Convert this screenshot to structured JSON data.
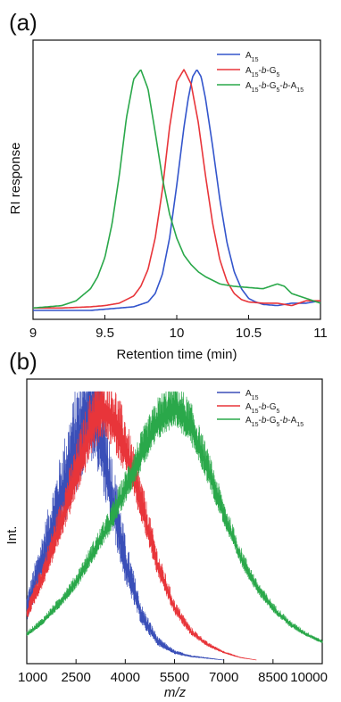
{
  "chart_data": [
    {
      "panel": "(a)",
      "type": "line",
      "xlabel": "Retention time (min)",
      "ylabel": "RI response",
      "xlim": [
        9,
        11
      ],
      "xticks": [
        "9",
        "9.5",
        "10",
        "10.5",
        "11"
      ],
      "legend_position": "top-right",
      "series": [
        {
          "name": "A15",
          "name_parts": [
            {
              "t": "A"
            },
            {
              "t": "15",
              "sub": true
            }
          ],
          "color": "#3355cc",
          "x": [
            9.0,
            9.2,
            9.4,
            9.6,
            9.7,
            9.8,
            9.85,
            9.9,
            9.95,
            10.0,
            10.05,
            10.08,
            10.11,
            10.14,
            10.17,
            10.2,
            10.25,
            10.3,
            10.35,
            10.4,
            10.45,
            10.5,
            10.55,
            10.6,
            10.7,
            10.8,
            10.9,
            11.0
          ],
          "y": [
            0.0,
            0.0,
            0.0,
            0.01,
            0.015,
            0.035,
            0.07,
            0.15,
            0.3,
            0.52,
            0.76,
            0.88,
            0.97,
            1.0,
            0.97,
            0.88,
            0.68,
            0.46,
            0.28,
            0.16,
            0.09,
            0.05,
            0.035,
            0.025,
            0.02,
            0.03,
            0.03,
            0.04
          ]
        },
        {
          "name": "A15-b-G5",
          "name_parts": [
            {
              "t": "A"
            },
            {
              "t": "15",
              "sub": true
            },
            {
              "t": "-"
            },
            {
              "t": "b",
              "italic": true
            },
            {
              "t": "-G"
            },
            {
              "t": "5",
              "sub": true
            }
          ],
          "color": "#e8353a",
          "x": [
            9.0,
            9.2,
            9.4,
            9.5,
            9.6,
            9.7,
            9.75,
            9.8,
            9.85,
            9.9,
            9.95,
            10.0,
            10.05,
            10.1,
            10.15,
            10.2,
            10.25,
            10.3,
            10.35,
            10.4,
            10.45,
            10.5,
            10.6,
            10.7,
            10.8,
            10.9,
            11.0
          ],
          "y": [
            0.01,
            0.01,
            0.015,
            0.02,
            0.03,
            0.06,
            0.1,
            0.17,
            0.3,
            0.5,
            0.76,
            0.95,
            1.0,
            0.94,
            0.78,
            0.56,
            0.36,
            0.21,
            0.12,
            0.07,
            0.045,
            0.035,
            0.03,
            0.03,
            0.02,
            0.04,
            0.04
          ]
        },
        {
          "name": "A15-b-G5-b-A15",
          "name_parts": [
            {
              "t": "A"
            },
            {
              "t": "15",
              "sub": true
            },
            {
              "t": "-"
            },
            {
              "t": "b",
              "italic": true
            },
            {
              "t": "-G"
            },
            {
              "t": "5",
              "sub": true
            },
            {
              "t": "-"
            },
            {
              "t": "b",
              "italic": true
            },
            {
              "t": "-A"
            },
            {
              "t": "15",
              "sub": true
            }
          ],
          "color": "#2aa84a",
          "x": [
            9.0,
            9.2,
            9.3,
            9.4,
            9.45,
            9.5,
            9.55,
            9.6,
            9.65,
            9.7,
            9.75,
            9.8,
            9.85,
            9.9,
            9.95,
            10.0,
            10.05,
            10.1,
            10.15,
            10.2,
            10.3,
            10.4,
            10.5,
            10.6,
            10.7,
            10.75,
            10.8,
            10.9,
            11.0
          ],
          "y": [
            0.01,
            0.02,
            0.04,
            0.09,
            0.14,
            0.22,
            0.36,
            0.56,
            0.8,
            0.96,
            1.0,
            0.92,
            0.74,
            0.55,
            0.4,
            0.3,
            0.23,
            0.19,
            0.16,
            0.14,
            0.11,
            0.1,
            0.095,
            0.09,
            0.11,
            0.1,
            0.07,
            0.05,
            0.03
          ]
        }
      ]
    },
    {
      "panel": "(b)",
      "type": "line",
      "xlabel": "m/z",
      "ylabel": "Int.",
      "xlim": [
        1000,
        10000
      ],
      "xticks": [
        "1000",
        "2500",
        "4000",
        "5500",
        "7000",
        "8500",
        "10000"
      ],
      "legend_position": "top-right",
      "series": [
        {
          "name": "A15",
          "name_parts": [
            {
              "t": "A"
            },
            {
              "t": "15",
              "sub": true
            }
          ],
          "color": "#3a4fb8",
          "x": [
            1000,
            1500,
            2000,
            2500,
            2800,
            3000,
            3200,
            3500,
            4000,
            4500,
            5000,
            5500,
            6000,
            7000
          ],
          "y": [
            0.2,
            0.4,
            0.62,
            0.84,
            0.96,
            1.0,
            0.92,
            0.7,
            0.38,
            0.17,
            0.07,
            0.03,
            0.015,
            0.0
          ],
          "noise": 0.24
        },
        {
          "name": "A15-b-G5",
          "name_parts": [
            {
              "t": "A"
            },
            {
              "t": "15",
              "sub": true
            },
            {
              "t": "-"
            },
            {
              "t": "b",
              "italic": true
            },
            {
              "t": "-G"
            },
            {
              "t": "5",
              "sub": true
            }
          ],
          "color": "#e8353a",
          "x": [
            1000,
            1500,
            2000,
            2500,
            3000,
            3300,
            3600,
            4000,
            4500,
            5000,
            5500,
            6000,
            6500,
            7000,
            7500,
            8000
          ],
          "y": [
            0.18,
            0.33,
            0.52,
            0.72,
            0.92,
            0.98,
            0.94,
            0.82,
            0.6,
            0.36,
            0.2,
            0.11,
            0.06,
            0.03,
            0.01,
            0.0
          ],
          "noise": 0.14
        },
        {
          "name": "A15-b-G5-b-A15",
          "name_parts": [
            {
              "t": "A"
            },
            {
              "t": "15",
              "sub": true
            },
            {
              "t": "-"
            },
            {
              "t": "b",
              "italic": true
            },
            {
              "t": "-G"
            },
            {
              "t": "5",
              "sub": true
            },
            {
              "t": "-"
            },
            {
              "t": "b",
              "italic": true
            },
            {
              "t": "-A"
            },
            {
              "t": "15",
              "sub": true
            }
          ],
          "color": "#2aa84a",
          "x": [
            1000,
            1500,
            2000,
            2500,
            3000,
            3500,
            4000,
            4500,
            5000,
            5500,
            6000,
            6500,
            7000,
            7500,
            8000,
            8500,
            9000,
            9500,
            10000
          ],
          "y": [
            0.1,
            0.15,
            0.22,
            0.3,
            0.41,
            0.52,
            0.66,
            0.8,
            0.92,
            0.98,
            0.9,
            0.74,
            0.56,
            0.4,
            0.28,
            0.2,
            0.14,
            0.1,
            0.07
          ],
          "noise": 0.09
        }
      ]
    }
  ]
}
